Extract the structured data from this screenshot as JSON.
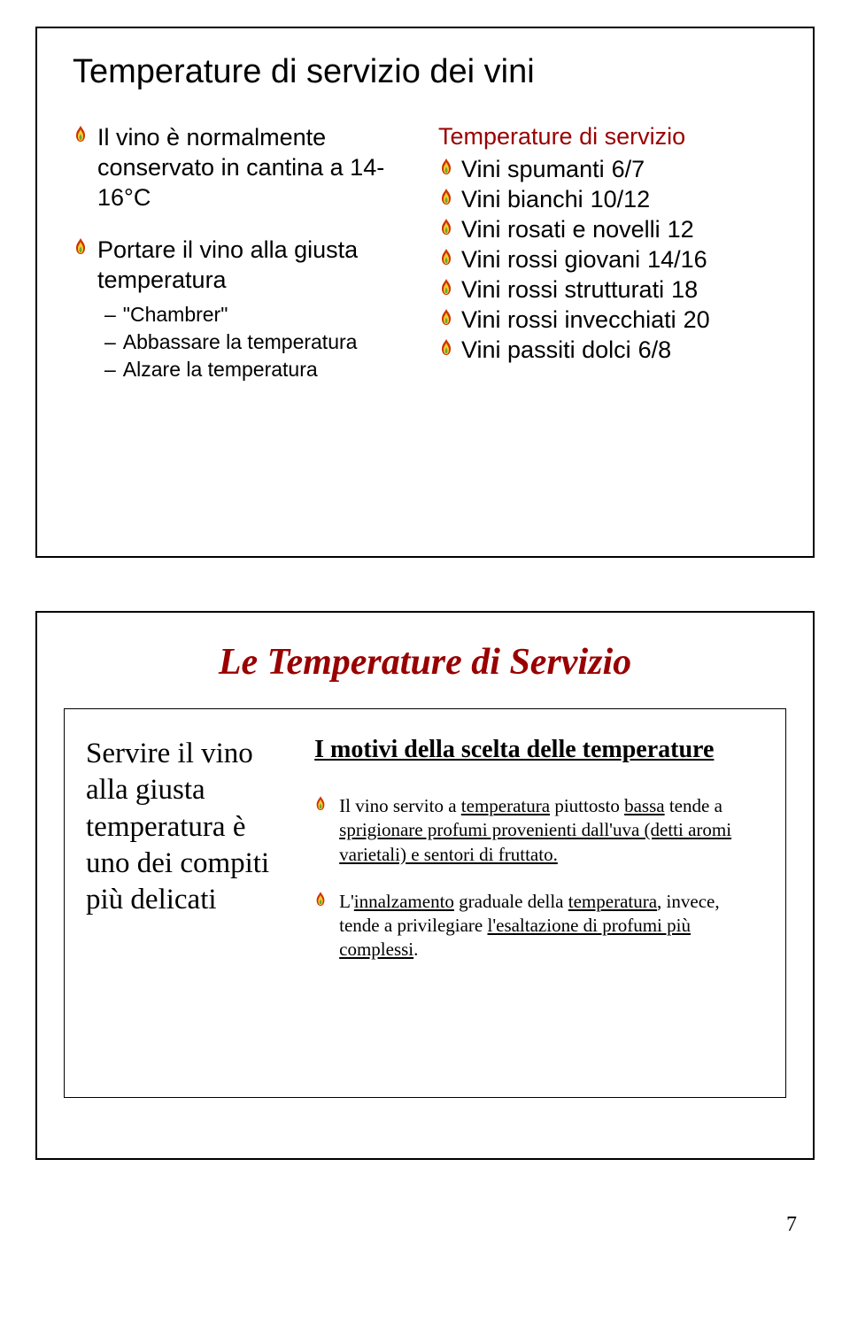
{
  "colors": {
    "border": "#000000",
    "text": "#000000",
    "accent": "#990000",
    "background": "#ffffff",
    "flame_red": "#cc3300",
    "flame_yellow": "#ffcc33",
    "flame_green": "#66aa33"
  },
  "slide1": {
    "title": "Temperature di servizio dei vini",
    "left": {
      "item1": "Il vino è normalmente conservato in cantina a 14-16°C",
      "item2": "Portare il vino alla giusta temperatura",
      "sub1": "\"Chambrer\"",
      "sub2": "Abbassare la temperatura",
      "sub3": "Alzare la temperatura"
    },
    "right": {
      "header": "Temperature di servizio",
      "rows": [
        {
          "label": "Vini spumanti",
          "temp": "6/7"
        },
        {
          "label": "Vini bianchi",
          "temp": "10/12"
        },
        {
          "label": "Vini rosati e novelli",
          "temp": "12"
        },
        {
          "label": "Vini rossi giovani",
          "temp": "14/16"
        },
        {
          "label": "Vini rossi strutturati",
          "temp": "18"
        },
        {
          "label": "Vini rossi invecchiati",
          "temp": "20"
        },
        {
          "label": "Vini passiti dolci",
          "temp": "6/8"
        }
      ]
    }
  },
  "slide2": {
    "title": "Le Temperature di Servizio",
    "left_text": "Servire il vino alla giusta temperatura è uno dei compiti più delicati",
    "right": {
      "header": "I motivi della scelta delle temperature",
      "p1_a": "Il vino servito a ",
      "p1_b": "temperatura",
      "p1_c": " piuttosto ",
      "p1_d": "bassa",
      "p1_e": " tende a ",
      "p1_f": "sprigionare profumi provenienti dall'uva (detti aromi varietali) e sentori di fruttato.",
      "p2_a": "L'",
      "p2_b": "innalzamento",
      "p2_c": " graduale della ",
      "p2_d": "temperatura",
      "p2_e": ", invece, tende a privilegiare ",
      "p2_f": "l'esaltazione di profumi più complessi",
      "p2_g": "."
    }
  },
  "page_number": "7"
}
